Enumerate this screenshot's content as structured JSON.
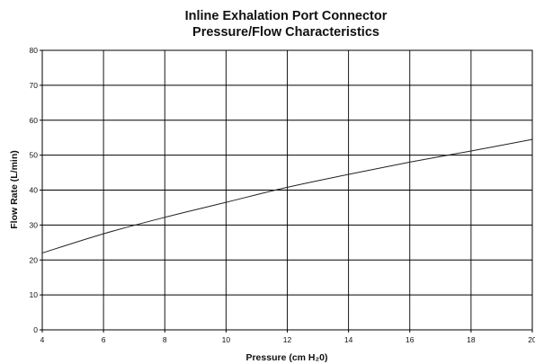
{
  "chart_data": {
    "type": "line",
    "title_line1": "Inline Exhalation Port Connector",
    "title_line2": "Pressure/Flow Characteristics",
    "xlabel": "Pressure (cm H₂0)",
    "ylabel": "Flow Rate (L/min)",
    "xlim": [
      4,
      20
    ],
    "ylim": [
      0,
      80
    ],
    "xticks": [
      4,
      6,
      8,
      10,
      12,
      14,
      16,
      18,
      20
    ],
    "yticks": [
      0,
      10,
      20,
      30,
      40,
      50,
      60,
      70,
      80
    ],
    "grid": true,
    "series": [
      {
        "x": [
          4,
          6,
          8,
          10,
          12,
          14,
          16,
          18,
          20
        ],
        "y": [
          22,
          27.5,
          32.2,
          36.5,
          40.8,
          44.5,
          48,
          51.2,
          54.5
        ]
      }
    ]
  }
}
